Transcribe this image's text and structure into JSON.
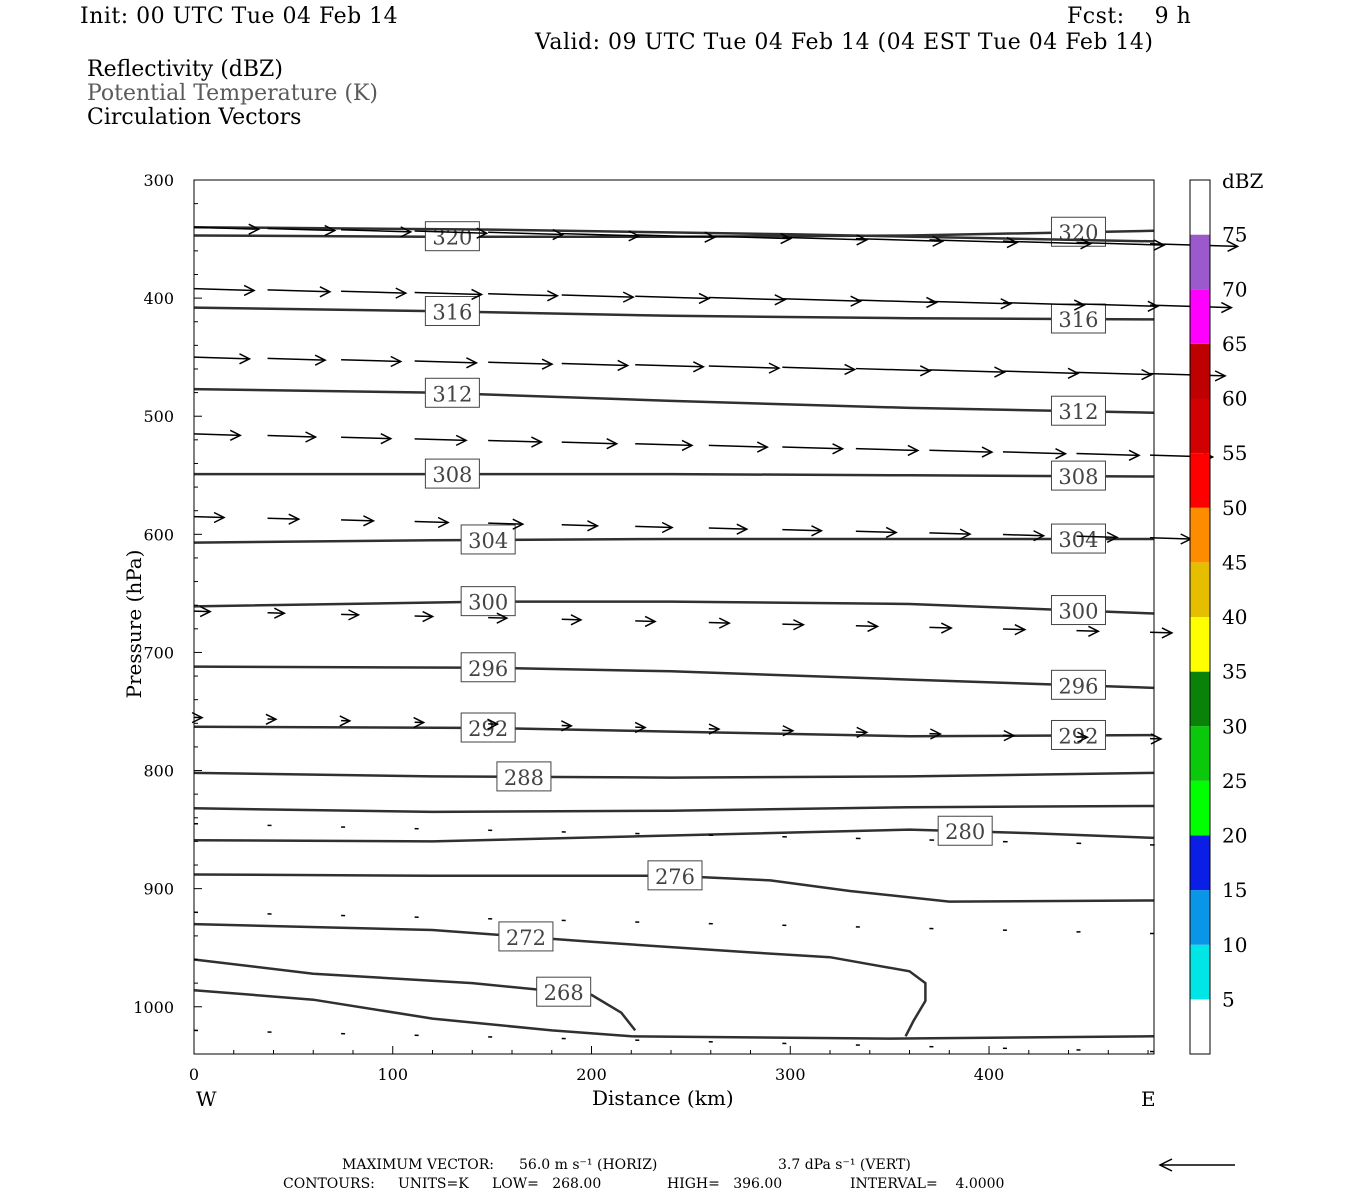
{
  "header": {
    "init": "Init: 00 UTC Tue 04 Feb 14",
    "fcst": "Fcst:    9 h",
    "valid": "Valid: 09 UTC Tue 04 Feb 14 (04 EST Tue 04 Feb 14)"
  },
  "legend": {
    "field1": "Reflectivity (dBZ)",
    "field2": "Potential Temperature (K)",
    "field3": "Circulation Vectors",
    "field2_color": "#5a5a5a"
  },
  "footer": {
    "max_vector_label": "MAXIMUM VECTOR:",
    "max_vector_horiz": "56.0 m s⁻¹ (HORIZ)",
    "max_vector_vert": "3.7 dPa s⁻¹ (VERT)",
    "contours_label": "CONTOURS:",
    "units": "UNITS=K",
    "low": "LOW=   268.00",
    "high": "HIGH=   396.00",
    "interval": "INTERVAL=    4.0000"
  },
  "colorbar": {
    "unit": "dBZ",
    "levels": [
      {
        "value": 5,
        "color": "#00e5e5"
      },
      {
        "value": 10,
        "color": "#0a96e6"
      },
      {
        "value": 15,
        "color": "#0a1ee6"
      },
      {
        "value": 20,
        "color": "#00ff00"
      },
      {
        "value": 25,
        "color": "#0ac80a"
      },
      {
        "value": 30,
        "color": "#0a820a"
      },
      {
        "value": 35,
        "color": "#ffff00"
      },
      {
        "value": 40,
        "color": "#e6be00"
      },
      {
        "value": 45,
        "color": "#ff8c00"
      },
      {
        "value": 50,
        "color": "#ff0000"
      },
      {
        "value": 55,
        "color": "#d20000"
      },
      {
        "value": 60,
        "color": "#be0000"
      },
      {
        "value": 65,
        "color": "#ff00ff"
      },
      {
        "value": 70,
        "color": "#9b59cc"
      },
      {
        "value": 75,
        "color": "#ffffff"
      }
    ]
  },
  "chart_data": {
    "type": "cross-section contour",
    "xlabel": "Distance (km)",
    "ylabel": "Pressure (hPa)",
    "x_ticks": [
      0,
      100,
      200,
      300,
      400
    ],
    "y_ticks": [
      300,
      400,
      500,
      600,
      700,
      800,
      900,
      1000
    ],
    "xlim": [
      0,
      483
    ],
    "ylim": [
      1040,
      300
    ],
    "x_end_labels": {
      "left": "W",
      "right": "E"
    },
    "contour_color": "#303030",
    "contours": [
      {
        "label": "320",
        "label_x": [
          130,
          445
        ],
        "points": [
          [
            0,
            347
          ],
          [
            120,
            348
          ],
          [
            240,
            348
          ],
          [
            360,
            347
          ],
          [
            483,
            343
          ]
        ]
      },
      {
        "label": "",
        "points": [
          [
            0,
            340
          ],
          [
            150,
            342
          ],
          [
            300,
            346
          ],
          [
            483,
            352
          ]
        ]
      },
      {
        "label": "316",
        "label_x": [
          130,
          445
        ],
        "points": [
          [
            0,
            408
          ],
          [
            120,
            411
          ],
          [
            240,
            415
          ],
          [
            360,
            417
          ],
          [
            483,
            418
          ]
        ]
      },
      {
        "label": "312",
        "label_x": [
          130,
          445
        ],
        "points": [
          [
            0,
            477
          ],
          [
            120,
            480
          ],
          [
            240,
            487
          ],
          [
            360,
            493
          ],
          [
            483,
            497
          ]
        ]
      },
      {
        "label": "308",
        "label_x": [
          130,
          445
        ],
        "points": [
          [
            0,
            549
          ],
          [
            120,
            549
          ],
          [
            240,
            549
          ],
          [
            360,
            550
          ],
          [
            483,
            551
          ]
        ]
      },
      {
        "label": "304",
        "label_x": [
          148,
          445
        ],
        "points": [
          [
            0,
            607
          ],
          [
            120,
            605
          ],
          [
            240,
            604
          ],
          [
            360,
            604
          ],
          [
            483,
            604
          ]
        ]
      },
      {
        "label": "300",
        "label_x": [
          148,
          445
        ],
        "points": [
          [
            0,
            661
          ],
          [
            148,
            657
          ],
          [
            240,
            657
          ],
          [
            360,
            659
          ],
          [
            483,
            667
          ]
        ]
      },
      {
        "label": "296",
        "label_x": [
          148,
          445
        ],
        "points": [
          [
            0,
            712
          ],
          [
            150,
            713
          ],
          [
            240,
            716
          ],
          [
            360,
            723
          ],
          [
            483,
            730
          ]
        ]
      },
      {
        "label": "292",
        "label_x": [
          148,
          445
        ],
        "points": [
          [
            0,
            763
          ],
          [
            150,
            764
          ],
          [
            240,
            767
          ],
          [
            360,
            771
          ],
          [
            483,
            770
          ]
        ]
      },
      {
        "label": "288",
        "label_x": [
          166
        ],
        "points": [
          [
            0,
            802
          ],
          [
            120,
            805
          ],
          [
            240,
            806
          ],
          [
            360,
            805
          ],
          [
            483,
            802
          ]
        ]
      },
      {
        "label": "",
        "points": [
          [
            0,
            832
          ],
          [
            120,
            835
          ],
          [
            240,
            834
          ],
          [
            360,
            831
          ],
          [
            483,
            830
          ]
        ]
      },
      {
        "label": "280",
        "label_x": [
          388
        ],
        "points": [
          [
            0,
            859
          ],
          [
            120,
            860
          ],
          [
            240,
            855
          ],
          [
            360,
            850
          ],
          [
            420,
            853
          ],
          [
            483,
            857
          ]
        ]
      },
      {
        "label": "276",
        "label_x": [
          242
        ],
        "points": [
          [
            0,
            888
          ],
          [
            120,
            889
          ],
          [
            240,
            889
          ],
          [
            290,
            893
          ],
          [
            330,
            902
          ],
          [
            380,
            911
          ],
          [
            483,
            910
          ]
        ]
      },
      {
        "label": "272",
        "label_x": [
          167
        ],
        "points": [
          [
            0,
            930
          ],
          [
            120,
            935
          ],
          [
            200,
            945
          ],
          [
            280,
            954
          ],
          [
            320,
            958
          ],
          [
            360,
            970
          ],
          [
            368,
            980
          ],
          [
            368,
            995
          ],
          [
            362,
            1012
          ],
          [
            358,
            1025
          ]
        ]
      },
      {
        "label": "268",
        "label_x": [
          186
        ],
        "points": [
          [
            0,
            960
          ],
          [
            60,
            972
          ],
          [
            140,
            980
          ],
          [
            200,
            990
          ],
          [
            215,
            1005
          ],
          [
            222,
            1020
          ]
        ]
      },
      {
        "label": "",
        "points": [
          [
            0,
            986
          ],
          [
            60,
            994
          ],
          [
            120,
            1010
          ],
          [
            180,
            1020
          ],
          [
            220,
            1025
          ],
          [
            350,
            1027
          ],
          [
            483,
            1025
          ]
        ]
      }
    ],
    "vector_rows": [
      {
        "p": 340,
        "u": 56,
        "w": -0.5
      },
      {
        "p": 392,
        "u": 52,
        "w": -0.4
      },
      {
        "p": 450,
        "u": 48,
        "w": -0.4
      },
      {
        "p": 515,
        "u": 40,
        "w": -0.3
      },
      {
        "p": 585,
        "u": 26,
        "w": -0.2
      },
      {
        "p": 665,
        "u": 14,
        "w": -0.15
      },
      {
        "p": 755,
        "u": 7,
        "w": -0.1
      },
      {
        "p": 845,
        "u": 3,
        "w": -0.05
      },
      {
        "p": 920,
        "u": 1,
        "w": -0.03
      },
      {
        "p": 1020,
        "u": 0.5,
        "w": 0
      }
    ],
    "vector_x_spacing_km": 37
  }
}
